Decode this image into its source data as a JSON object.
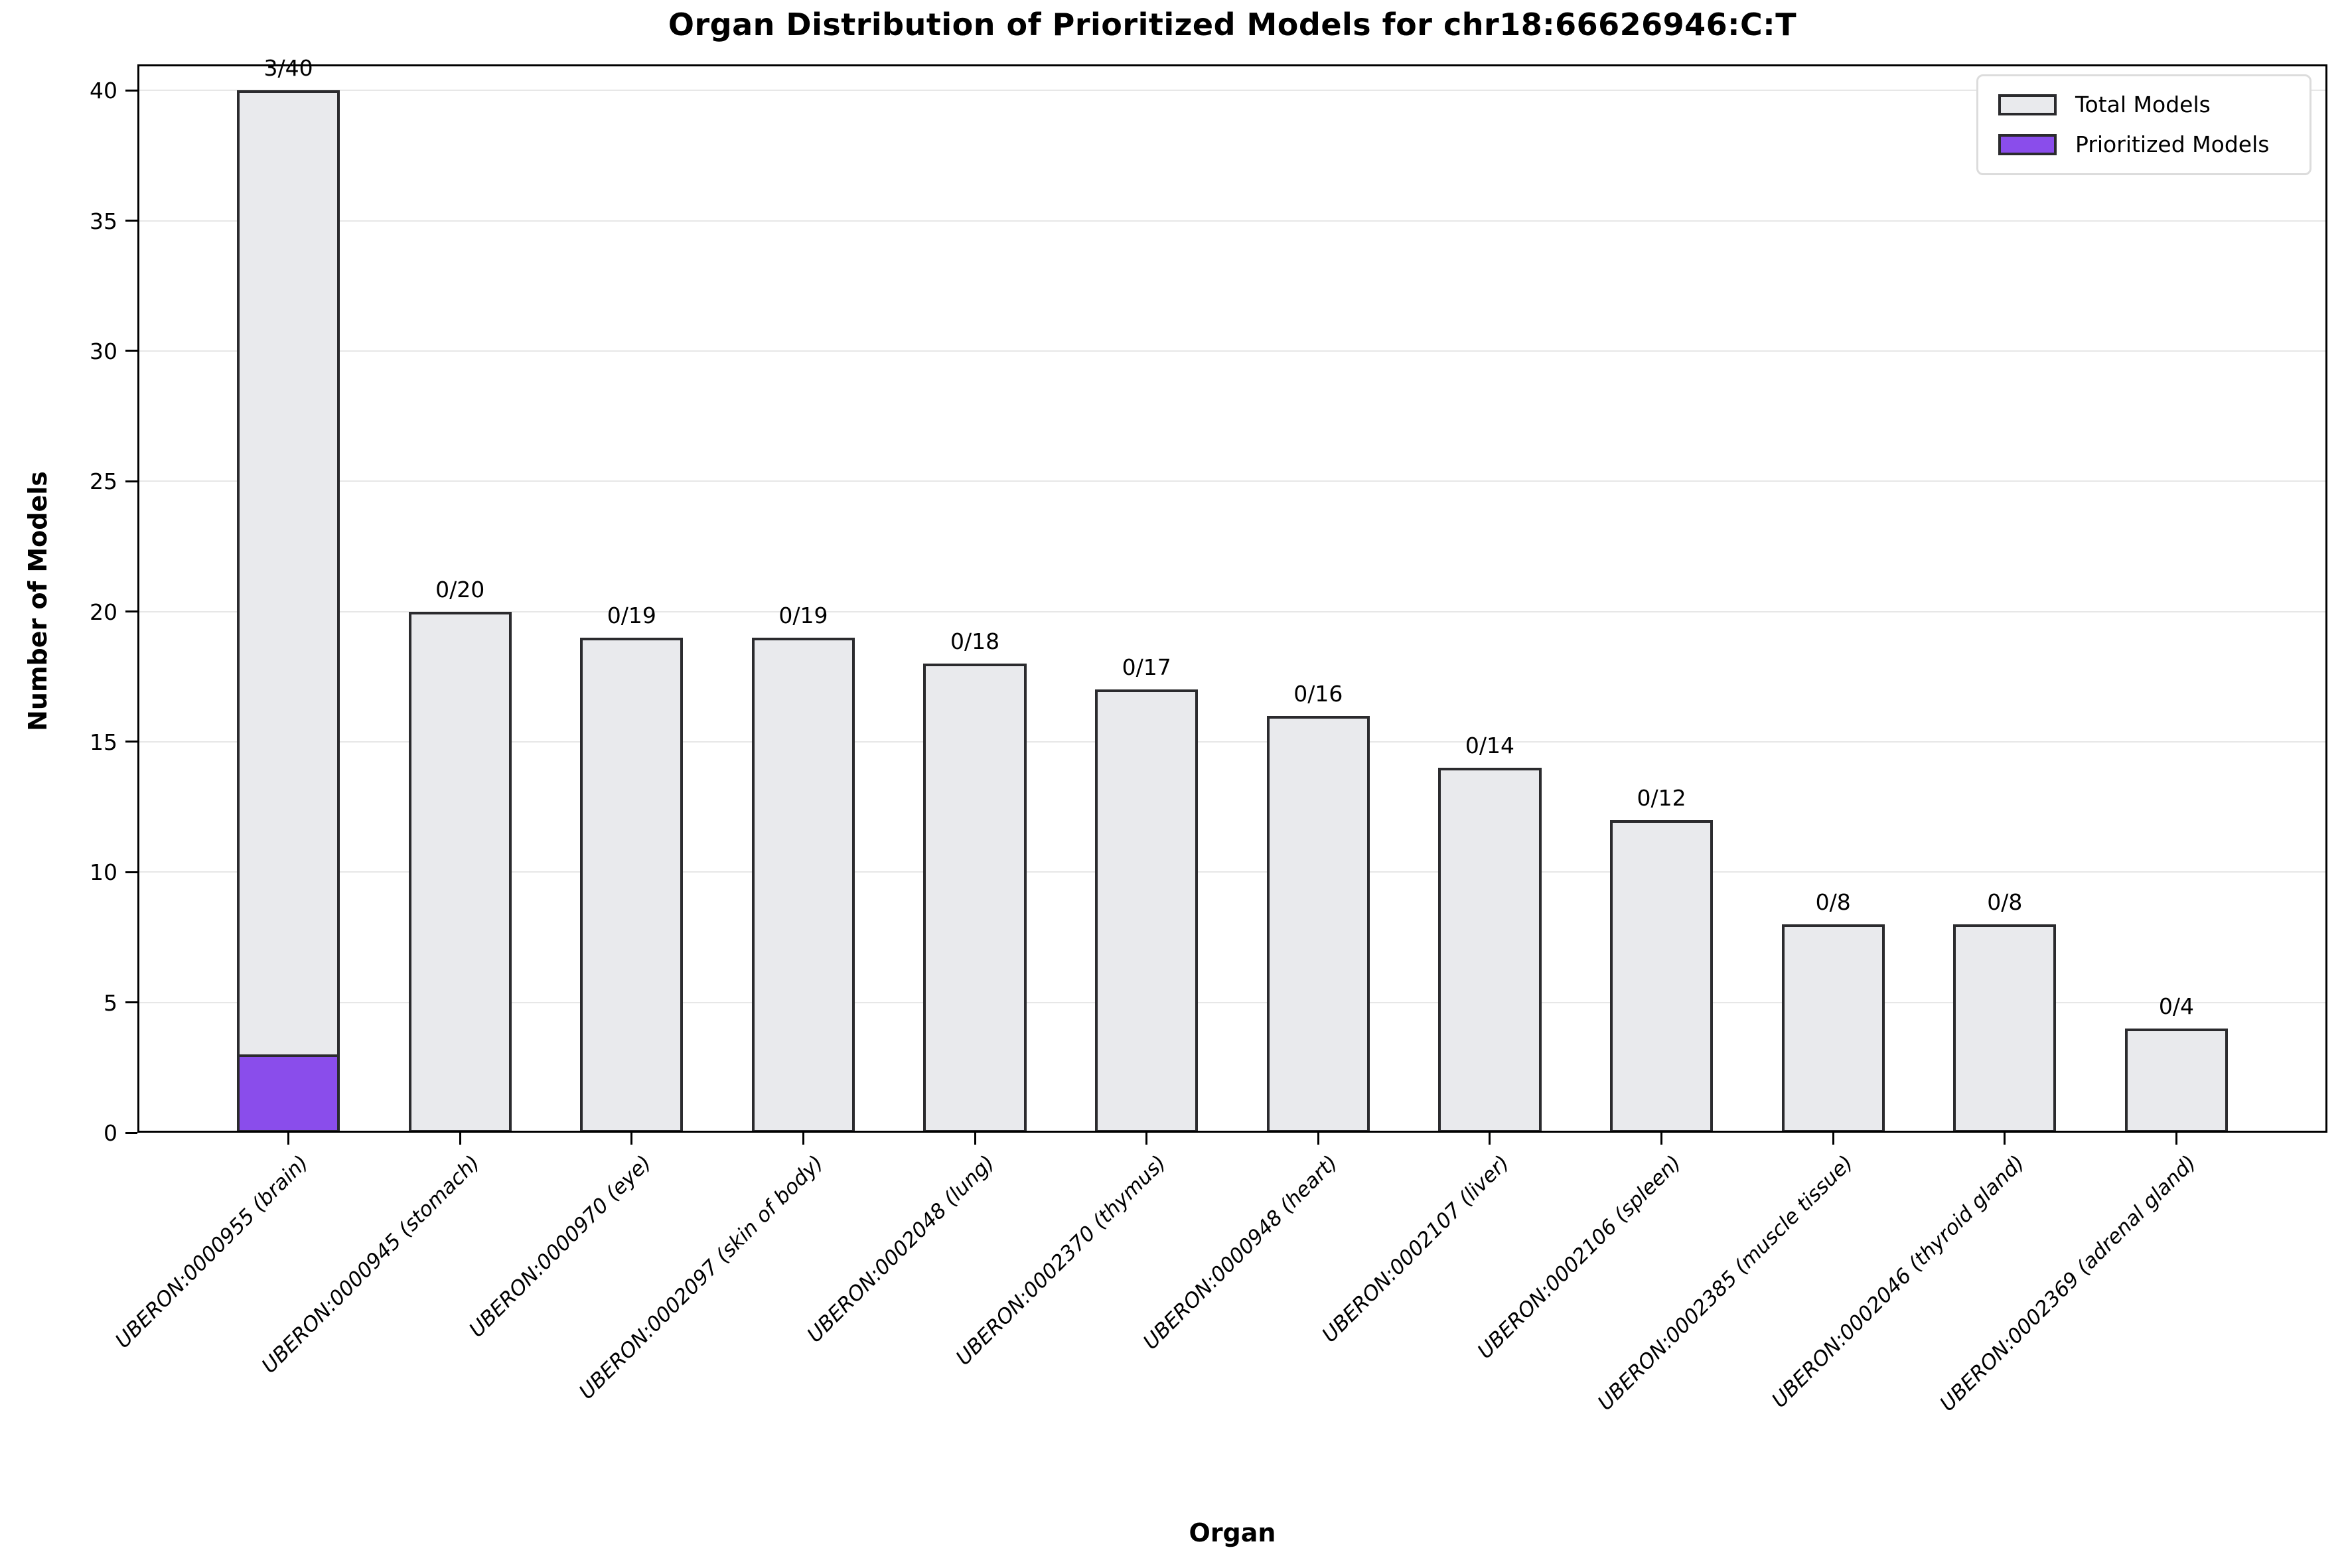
{
  "chart_data": {
    "type": "bar",
    "title": "Organ Distribution of Prioritized Models for chr18:66626946:C:T",
    "xlabel": "Organ",
    "ylabel": "Number of Models",
    "ylim": [
      0,
      41
    ],
    "yticks": [
      0,
      5,
      10,
      15,
      20,
      25,
      30,
      35,
      40
    ],
    "grid": "horizontal",
    "legend_position": "upper right",
    "categories": [
      "UBERON:0000955 (brain)",
      "UBERON:0000945 (stomach)",
      "UBERON:0000970 (eye)",
      "UBERON:0002097 (skin of body)",
      "UBERON:0002048 (lung)",
      "UBERON:0002370 (thymus)",
      "UBERON:0000948 (heart)",
      "UBERON:0002107 (liver)",
      "UBERON:0002106 (spleen)",
      "UBERON:0002385 (muscle tissue)",
      "UBERON:0002046 (thyroid gland)",
      "UBERON:0002369 (adrenal gland)"
    ],
    "series": [
      {
        "name": "Total Models",
        "color": "#e9eaed",
        "values": [
          40,
          20,
          19,
          19,
          18,
          17,
          16,
          14,
          12,
          8,
          8,
          4
        ]
      },
      {
        "name": "Prioritized Models",
        "color": "#8a4deb",
        "values": [
          3,
          0,
          0,
          0,
          0,
          0,
          0,
          0,
          0,
          0,
          0,
          0
        ]
      }
    ],
    "annotations": [
      "3/40",
      "0/20",
      "0/19",
      "0/19",
      "0/18",
      "0/17",
      "0/16",
      "0/14",
      "0/12",
      "0/8",
      "0/8",
      "0/4"
    ],
    "colors": {
      "background": "#ffffff",
      "bar_edge": "#2b2b2e",
      "grid": "#e7e7e7",
      "axis": "#000000",
      "legend_border": "#dcdcdc"
    }
  }
}
